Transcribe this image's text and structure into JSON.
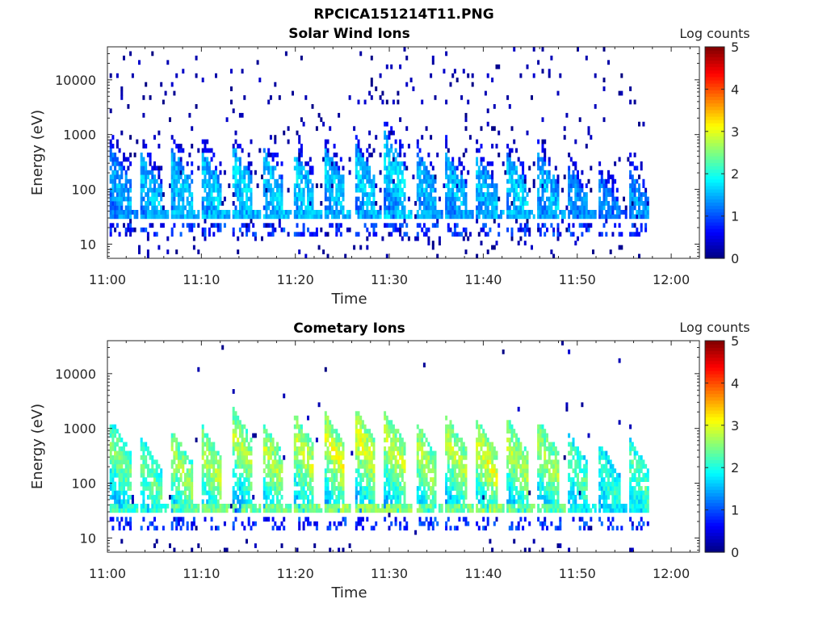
{
  "figure": {
    "title": "RPCICA151214T11.PNG"
  },
  "chart_data": [
    {
      "type": "heatmap",
      "title": "Solar Wind Ions",
      "xlabel": "Time",
      "ylabel": "Energy (eV)",
      "x_ticks": [
        "11:00",
        "11:10",
        "11:20",
        "11:30",
        "11:40",
        "11:50",
        "12:00"
      ],
      "x_range_minutes": [
        0,
        63
      ],
      "data_extent_minutes": [
        0,
        57.5
      ],
      "y_scale": "log",
      "y_ticks": [
        "10",
        "100",
        "1000",
        "10000"
      ],
      "y_range_eV": [
        5.5,
        40000
      ],
      "colorbar": {
        "label": "Log counts",
        "ticks": [
          "0",
          "1",
          "2",
          "3",
          "4",
          "5"
        ],
        "range": [
          0,
          5
        ],
        "colormap": "jet"
      },
      "scan_starts_minutes": [
        0.3,
        3.6,
        6.8,
        10.0,
        13.3,
        16.5,
        19.8,
        23.0,
        26.3,
        29.5,
        32.8,
        36.0,
        39.3,
        42.5,
        45.8,
        49.0,
        52.3,
        55.5
      ],
      "scan_peak_log_counts": [
        1.8,
        1.9,
        2.0,
        2.0,
        2.0,
        2.0,
        2.0,
        2.0,
        2.0,
        2.1,
        1.9,
        1.9,
        1.9,
        2.0,
        1.9,
        1.7,
        1.6,
        1.7
      ],
      "scan_max_energy_eV": [
        600,
        450,
        600,
        550,
        650,
        600,
        550,
        650,
        700,
        1100,
        550,
        500,
        450,
        500,
        500,
        300,
        220,
        250
      ],
      "band_energy_eV": 38,
      "background_counts_to_eV": 40000
    },
    {
      "type": "heatmap",
      "title": "Cometary Ions",
      "xlabel": "Time",
      "ylabel": "Energy (eV)",
      "x_ticks": [
        "11:00",
        "11:10",
        "11:20",
        "11:30",
        "11:40",
        "11:50",
        "12:00"
      ],
      "x_range_minutes": [
        0,
        63
      ],
      "data_extent_minutes": [
        0,
        57.5
      ],
      "y_scale": "log",
      "y_ticks": [
        "10",
        "100",
        "1000",
        "10000"
      ],
      "y_range_eV": [
        5.5,
        40000
      ],
      "colorbar": {
        "label": "Log counts",
        "ticks": [
          "0",
          "1",
          "2",
          "3",
          "4",
          "5"
        ],
        "range": [
          0,
          5
        ],
        "colormap": "jet"
      },
      "scan_starts_minutes": [
        0.3,
        3.6,
        6.8,
        10.0,
        13.3,
        16.5,
        19.8,
        23.0,
        26.3,
        29.5,
        32.8,
        36.0,
        39.3,
        42.5,
        45.8,
        49.0,
        52.3,
        55.5
      ],
      "scan_peak_log_counts": [
        2.8,
        2.7,
        3.0,
        3.1,
        3.1,
        3.1,
        3.2,
        3.3,
        3.3,
        3.2,
        3.1,
        3.1,
        3.3,
        3.1,
        3.0,
        2.6,
        2.4,
        2.6
      ],
      "scan_max_energy_eV": [
        1500,
        700,
        1000,
        1200,
        2500,
        1400,
        2000,
        2200,
        2500,
        2200,
        1400,
        1800,
        1500,
        1600,
        1500,
        900,
        600,
        700
      ],
      "band_energy_eV": 38,
      "background_counts_to_eV": 40000
    }
  ]
}
